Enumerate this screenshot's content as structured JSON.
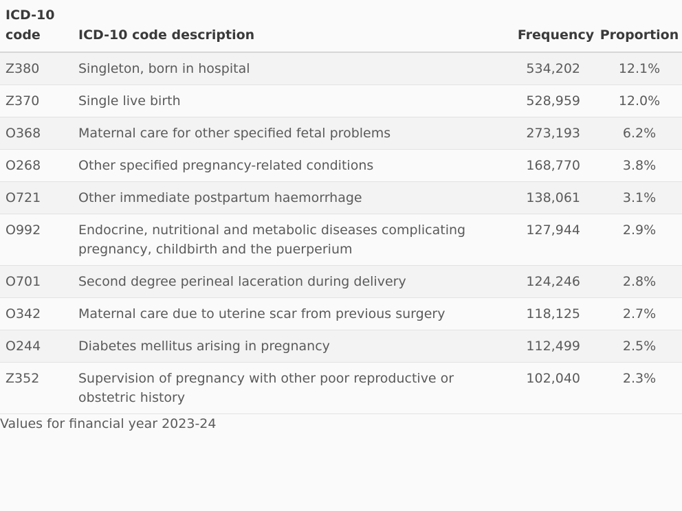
{
  "table": {
    "headers": {
      "code": "ICD-10 code",
      "description": "ICD-10 code description",
      "frequency": "Frequency",
      "proportion": "Proportion"
    },
    "rows": [
      {
        "code": "Z380",
        "description": "Singleton, born in hospital",
        "frequency": "534,202",
        "proportion": "12.1%"
      },
      {
        "code": "Z370",
        "description": "Single live birth",
        "frequency": "528,959",
        "proportion": "12.0%"
      },
      {
        "code": "O368",
        "description": "Maternal care for other specified fetal problems",
        "frequency": "273,193",
        "proportion": "6.2%"
      },
      {
        "code": "O268",
        "description": "Other specified pregnancy-related conditions",
        "frequency": "168,770",
        "proportion": "3.8%"
      },
      {
        "code": "O721",
        "description": "Other immediate postpartum haemorrhage",
        "frequency": "138,061",
        "proportion": "3.1%"
      },
      {
        "code": "O992",
        "description": "Endocrine, nutritional and metabolic diseases complicating pregnancy, childbirth and the puerperium",
        "frequency": "127,944",
        "proportion": "2.9%"
      },
      {
        "code": "O701",
        "description": "Second degree perineal laceration during delivery",
        "frequency": "124,246",
        "proportion": "2.8%"
      },
      {
        "code": "O342",
        "description": "Maternal care due to uterine scar from previous surgery",
        "frequency": "118,125",
        "proportion": "2.7%"
      },
      {
        "code": "O244",
        "description": "Diabetes mellitus arising in pregnancy",
        "frequency": "112,499",
        "proportion": "2.5%"
      },
      {
        "code": "Z352",
        "description": "Supervision of pregnancy with other poor reproductive or obstetric history",
        "frequency": "102,040",
        "proportion": "2.3%"
      }
    ]
  },
  "caption": "Values for financial year 2023-24"
}
